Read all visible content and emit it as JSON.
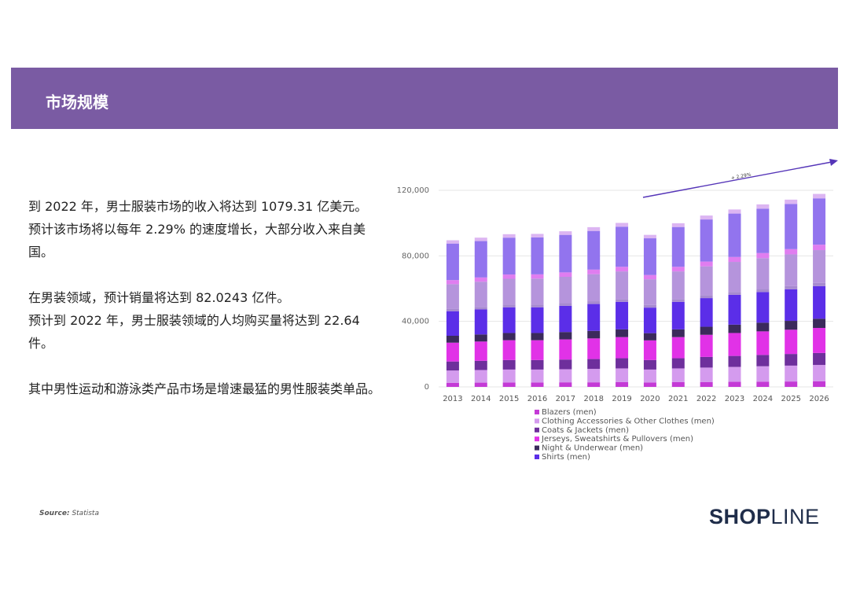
{
  "header": {
    "title": "市场规模"
  },
  "body": {
    "p1": "到 2022 年，男士服装市场的收入将达到 1079.31 亿美元。",
    "p2": "预计该市场将以每年 2.29% 的速度增长，大部分收入来自美",
    "p3": "国。",
    "p4": "在男装领域，预计销量将达到 82.0243 亿件。",
    "p5": "预计到 2022 年，男士服装领域的人均购买量将达到 22.64",
    "p6": "件。",
    "p7": "其中男性运动和游泳类产品市场是增速最猛的男性服装类单品。"
  },
  "source": {
    "label": "Source:",
    "value": "Statista"
  },
  "logo": {
    "part1": "SHOP",
    "part2": "LINE"
  },
  "chart_data": {
    "type": "bar",
    "stacked": true,
    "categories": [
      "2013",
      "2014",
      "2015",
      "2016",
      "2017",
      "2018",
      "2019",
      "2020",
      "2021",
      "2022",
      "2023",
      "2024",
      "2025",
      "2026"
    ],
    "ylim": [
      0,
      120000
    ],
    "yticks": [
      "0",
      "40,000",
      "80,000",
      "120,000"
    ],
    "growth_label": "+ 2.29%",
    "series": [
      {
        "name": "Blazers (men)",
        "color": "#c43ad6",
        "values": [
          2500,
          2600,
          2700,
          2700,
          2800,
          2800,
          2900,
          2700,
          2900,
          3000,
          3100,
          3200,
          3300,
          3400
        ]
      },
      {
        "name": "Clothing Accessories & Other Clothes (men)",
        "color": "#d49bee",
        "values": [
          7500,
          7700,
          7900,
          7900,
          8000,
          8200,
          8400,
          7900,
          8400,
          8800,
          9100,
          9400,
          9700,
          10000
        ]
      },
      {
        "name": "Coats & Jackets (men)",
        "color": "#6e2f9c",
        "values": [
          5500,
          5600,
          5800,
          5800,
          5900,
          6000,
          6200,
          5800,
          6200,
          6500,
          6700,
          6900,
          7100,
          7300
        ]
      },
      {
        "name": "Jerseys, Sweatshirts & Pullovers (men)",
        "color": "#e132e7",
        "values": [
          11500,
          11800,
          12100,
          12100,
          12300,
          12600,
          12900,
          12000,
          12900,
          13500,
          14000,
          14400,
          14800,
          15300
        ]
      },
      {
        "name": "Night & Underwear (men)",
        "color": "#3b2a5c",
        "values": [
          4200,
          4300,
          4400,
          4400,
          4500,
          4600,
          4700,
          4400,
          4700,
          4900,
          5100,
          5300,
          5400,
          5600
        ]
      },
      {
        "name": "Shirts (men)",
        "color": "#5b2ee8",
        "values": [
          15000,
          15300,
          15700,
          15700,
          16000,
          16400,
          16800,
          15600,
          16800,
          17500,
          18200,
          18700,
          19300,
          19900
        ]
      },
      {
        "values": [
          1500,
          1500,
          1600,
          1600,
          1600,
          1700,
          1700,
          1600,
          1700,
          1800,
          1800,
          1900,
          1900,
          2000
        ],
        "color": "#a78ad0"
      },
      {
        "values": [
          15000,
          15400,
          15800,
          15900,
          16100,
          16500,
          16900,
          15700,
          16900,
          17600,
          18300,
          18800,
          19400,
          20000
        ],
        "color": "#b594dc"
      },
      {
        "values": [
          2500,
          2600,
          2600,
          2600,
          2700,
          2800,
          2800,
          2600,
          2800,
          2900,
          3000,
          3100,
          3200,
          3300
        ],
        "color": "#e07df0"
      },
      {
        "values": [
          22300,
          22200,
          22500,
          22600,
          22900,
          23600,
          24500,
          22400,
          24300,
          25700,
          26500,
          27100,
          27600,
          28300
        ],
        "color": "#9274ee"
      },
      {
        "values": [
          2000,
          2100,
          2100,
          2100,
          2200,
          2300,
          2300,
          2100,
          2300,
          2400,
          2500,
          2600,
          2600,
          2700
        ],
        "color": "#dcb5f2"
      }
    ]
  }
}
